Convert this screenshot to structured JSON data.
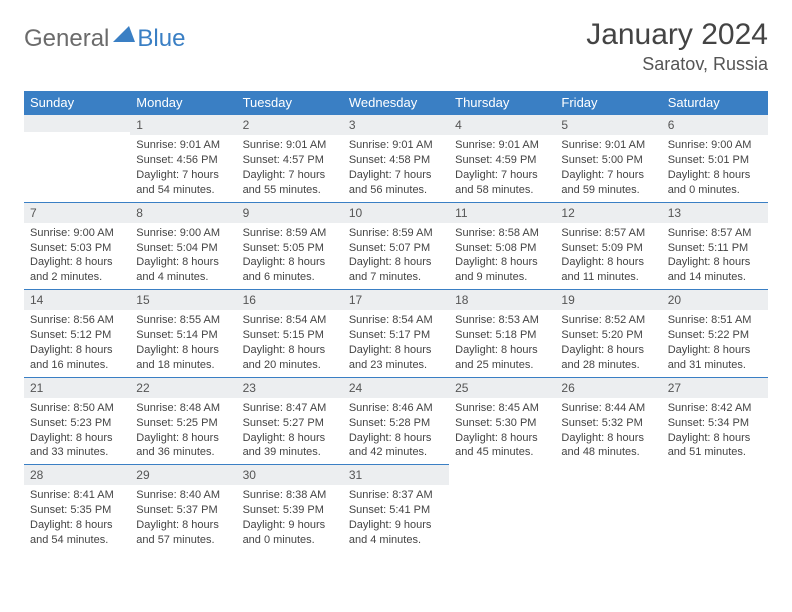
{
  "logo": {
    "text1": "General",
    "text2": "Blue"
  },
  "header": {
    "title": "January 2024",
    "location": "Saratov, Russia"
  },
  "colors": {
    "accent": "#3a7fc4",
    "dayHeaderBg": "#eceef0",
    "text": "#444444"
  },
  "weekdays": [
    "Sunday",
    "Monday",
    "Tuesday",
    "Wednesday",
    "Thursday",
    "Friday",
    "Saturday"
  ],
  "layout": {
    "firstDayOffset": 1,
    "daysInMonth": 31
  },
  "days": {
    "1": {
      "sunrise": "9:01 AM",
      "sunset": "4:56 PM",
      "daylight": "7 hours and 54 minutes."
    },
    "2": {
      "sunrise": "9:01 AM",
      "sunset": "4:57 PM",
      "daylight": "7 hours and 55 minutes."
    },
    "3": {
      "sunrise": "9:01 AM",
      "sunset": "4:58 PM",
      "daylight": "7 hours and 56 minutes."
    },
    "4": {
      "sunrise": "9:01 AM",
      "sunset": "4:59 PM",
      "daylight": "7 hours and 58 minutes."
    },
    "5": {
      "sunrise": "9:01 AM",
      "sunset": "5:00 PM",
      "daylight": "7 hours and 59 minutes."
    },
    "6": {
      "sunrise": "9:00 AM",
      "sunset": "5:01 PM",
      "daylight": "8 hours and 0 minutes."
    },
    "7": {
      "sunrise": "9:00 AM",
      "sunset": "5:03 PM",
      "daylight": "8 hours and 2 minutes."
    },
    "8": {
      "sunrise": "9:00 AM",
      "sunset": "5:04 PM",
      "daylight": "8 hours and 4 minutes."
    },
    "9": {
      "sunrise": "8:59 AM",
      "sunset": "5:05 PM",
      "daylight": "8 hours and 6 minutes."
    },
    "10": {
      "sunrise": "8:59 AM",
      "sunset": "5:07 PM",
      "daylight": "8 hours and 7 minutes."
    },
    "11": {
      "sunrise": "8:58 AM",
      "sunset": "5:08 PM",
      "daylight": "8 hours and 9 minutes."
    },
    "12": {
      "sunrise": "8:57 AM",
      "sunset": "5:09 PM",
      "daylight": "8 hours and 11 minutes."
    },
    "13": {
      "sunrise": "8:57 AM",
      "sunset": "5:11 PM",
      "daylight": "8 hours and 14 minutes."
    },
    "14": {
      "sunrise": "8:56 AM",
      "sunset": "5:12 PM",
      "daylight": "8 hours and 16 minutes."
    },
    "15": {
      "sunrise": "8:55 AM",
      "sunset": "5:14 PM",
      "daylight": "8 hours and 18 minutes."
    },
    "16": {
      "sunrise": "8:54 AM",
      "sunset": "5:15 PM",
      "daylight": "8 hours and 20 minutes."
    },
    "17": {
      "sunrise": "8:54 AM",
      "sunset": "5:17 PM",
      "daylight": "8 hours and 23 minutes."
    },
    "18": {
      "sunrise": "8:53 AM",
      "sunset": "5:18 PM",
      "daylight": "8 hours and 25 minutes."
    },
    "19": {
      "sunrise": "8:52 AM",
      "sunset": "5:20 PM",
      "daylight": "8 hours and 28 minutes."
    },
    "20": {
      "sunrise": "8:51 AM",
      "sunset": "5:22 PM",
      "daylight": "8 hours and 31 minutes."
    },
    "21": {
      "sunrise": "8:50 AM",
      "sunset": "5:23 PM",
      "daylight": "8 hours and 33 minutes."
    },
    "22": {
      "sunrise": "8:48 AM",
      "sunset": "5:25 PM",
      "daylight": "8 hours and 36 minutes."
    },
    "23": {
      "sunrise": "8:47 AM",
      "sunset": "5:27 PM",
      "daylight": "8 hours and 39 minutes."
    },
    "24": {
      "sunrise": "8:46 AM",
      "sunset": "5:28 PM",
      "daylight": "8 hours and 42 minutes."
    },
    "25": {
      "sunrise": "8:45 AM",
      "sunset": "5:30 PM",
      "daylight": "8 hours and 45 minutes."
    },
    "26": {
      "sunrise": "8:44 AM",
      "sunset": "5:32 PM",
      "daylight": "8 hours and 48 minutes."
    },
    "27": {
      "sunrise": "8:42 AM",
      "sunset": "5:34 PM",
      "daylight": "8 hours and 51 minutes."
    },
    "28": {
      "sunrise": "8:41 AM",
      "sunset": "5:35 PM",
      "daylight": "8 hours and 54 minutes."
    },
    "29": {
      "sunrise": "8:40 AM",
      "sunset": "5:37 PM",
      "daylight": "8 hours and 57 minutes."
    },
    "30": {
      "sunrise": "8:38 AM",
      "sunset": "5:39 PM",
      "daylight": "9 hours and 0 minutes."
    },
    "31": {
      "sunrise": "8:37 AM",
      "sunset": "5:41 PM",
      "daylight": "9 hours and 4 minutes."
    }
  },
  "labels": {
    "sunrise": "Sunrise: ",
    "sunset": "Sunset: ",
    "daylight": "Daylight: "
  }
}
